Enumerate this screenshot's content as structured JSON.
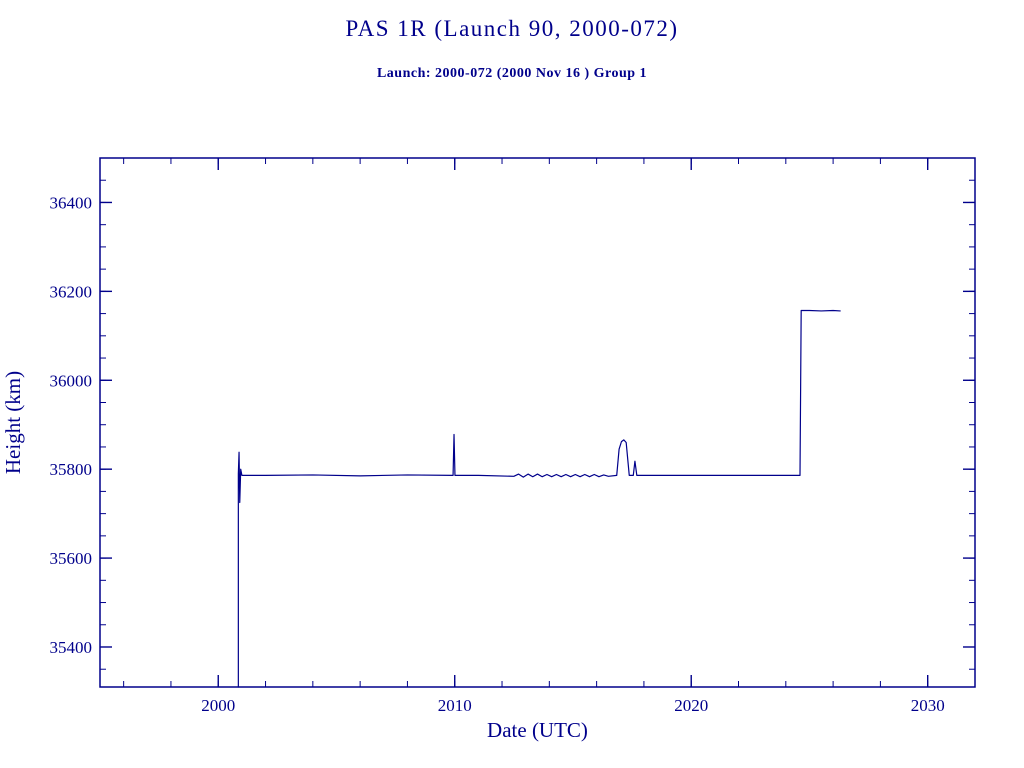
{
  "header": {
    "title": "PAS 1R (Launch 90, 2000-072)",
    "subtitle": "Launch: 2000-072  (2000 Nov 16 )  Group 1"
  },
  "colors": {
    "accent": "#00008B",
    "background": "#FFFFFF"
  },
  "chart_data": {
    "type": "line",
    "title": "PAS 1R (Launch 90, 2000-072)",
    "subtitle": "Launch: 2000-072  (2000 Nov 16 )  Group 1",
    "xlabel": "Date (UTC)",
    "ylabel": "Height (km)",
    "xlim": [
      1995,
      2032
    ],
    "ylim": [
      35310,
      36500
    ],
    "x_major_ticks": [
      2000,
      2010,
      2020,
      2030
    ],
    "x_minor_step": 2,
    "y_major_ticks": [
      35400,
      35600,
      35800,
      36000,
      36200,
      36400
    ],
    "y_minor_step": 50,
    "grid": false,
    "legend": "none",
    "line_color": "#00008B",
    "series": [
      {
        "name": "height-km",
        "points": [
          [
            2000.85,
            35310
          ],
          [
            2000.85,
            35790
          ],
          [
            2000.88,
            35838
          ],
          [
            2000.91,
            35725
          ],
          [
            2000.95,
            35800
          ],
          [
            2001.0,
            35786
          ],
          [
            2002.0,
            35786
          ],
          [
            2004.0,
            35787
          ],
          [
            2006.0,
            35785
          ],
          [
            2008.0,
            35787
          ],
          [
            2009.93,
            35786
          ],
          [
            2009.97,
            35878
          ],
          [
            2010.01,
            35786
          ],
          [
            2011.0,
            35786
          ],
          [
            2012.5,
            35784
          ],
          [
            2012.7,
            35789
          ],
          [
            2012.9,
            35782
          ],
          [
            2013.1,
            35789
          ],
          [
            2013.3,
            35783
          ],
          [
            2013.5,
            35789
          ],
          [
            2013.7,
            35783
          ],
          [
            2013.9,
            35788
          ],
          [
            2014.1,
            35783
          ],
          [
            2014.3,
            35788
          ],
          [
            2014.5,
            35783
          ],
          [
            2014.7,
            35788
          ],
          [
            2014.9,
            35783
          ],
          [
            2015.1,
            35788
          ],
          [
            2015.3,
            35783
          ],
          [
            2015.5,
            35788
          ],
          [
            2015.7,
            35783
          ],
          [
            2015.9,
            35788
          ],
          [
            2016.1,
            35783
          ],
          [
            2016.3,
            35787
          ],
          [
            2016.5,
            35784
          ],
          [
            2016.85,
            35786
          ],
          [
            2016.95,
            35845
          ],
          [
            2017.05,
            35862
          ],
          [
            2017.15,
            35866
          ],
          [
            2017.25,
            35860
          ],
          [
            2017.32,
            35820
          ],
          [
            2017.38,
            35786
          ],
          [
            2017.55,
            35786
          ],
          [
            2017.62,
            35818
          ],
          [
            2017.7,
            35786
          ],
          [
            2019.0,
            35786
          ],
          [
            2021.0,
            35786
          ],
          [
            2023.0,
            35786
          ],
          [
            2024.6,
            35786
          ],
          [
            2024.65,
            36157
          ],
          [
            2025.0,
            36157
          ],
          [
            2025.5,
            36156
          ],
          [
            2026.0,
            36157
          ],
          [
            2026.3,
            36156
          ]
        ]
      }
    ]
  }
}
